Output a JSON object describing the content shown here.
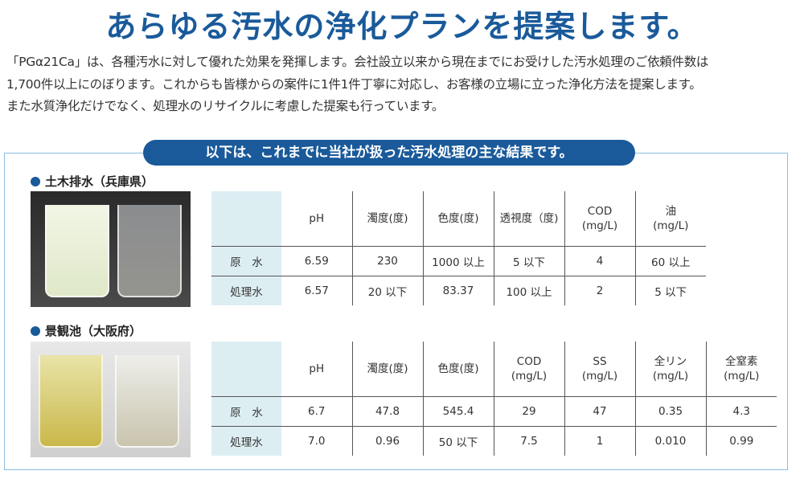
{
  "title": "あらゆる汚水の浄化プランを提案します。",
  "intro": [
    "「PGα21Ca」は、各種汚水に対して優れた効果を発揮します。会社設立以来から現在までにお受けした汚水処理のご依頼件数は",
    "1,700件以上にのぼります。これからも皆様からの案件に1件1件丁寧に対応し、お客様の立場に立った浄化方法を提案します。",
    "また水質浄化だけでなく、処理水のリサイクルに考慮した提案も行っています。"
  ],
  "banner": "以下は、これまでに当社が扱った汚水処理の主な結果です。",
  "colors": {
    "accent": "#1a5a9a",
    "label_bg": "#ddeef3",
    "frame": "#8bbde0"
  },
  "sections": [
    {
      "heading": "土木排水（兵庫県）",
      "photo_alt": "beakers before and after",
      "headers": [
        "pH",
        "濁度(度)",
        "色度(度)",
        "透視度（度)",
        "COD\n(mg/L)",
        "油\n(mg/L)"
      ],
      "rows": [
        {
          "label": "原　水",
          "values": [
            "6.59",
            "230",
            "1000 以上",
            "5 以下",
            "4",
            "60 以上"
          ]
        },
        {
          "label": "処理水",
          "values": [
            "6.57",
            "20 以下",
            "83.37",
            "100 以上",
            "2",
            "5 以下"
          ]
        }
      ]
    },
    {
      "heading": "景観池（大阪府）",
      "photo_alt": "beakers before and after",
      "headers": [
        "pH",
        "濁度(度)",
        "色度(度)",
        "COD\n(mg/L)",
        "SS\n(mg/L)",
        "全リン\n(mg/L)",
        "全窒素\n(mg/L)"
      ],
      "rows": [
        {
          "label": "原　水",
          "values": [
            "6.7",
            "47.8",
            "545.4",
            "29",
            "47",
            "0.35",
            "4.3"
          ]
        },
        {
          "label": "処理水",
          "values": [
            "7.0",
            "0.96",
            "50 以下",
            "7.5",
            "1",
            "0.010",
            "0.99"
          ]
        }
      ]
    }
  ]
}
